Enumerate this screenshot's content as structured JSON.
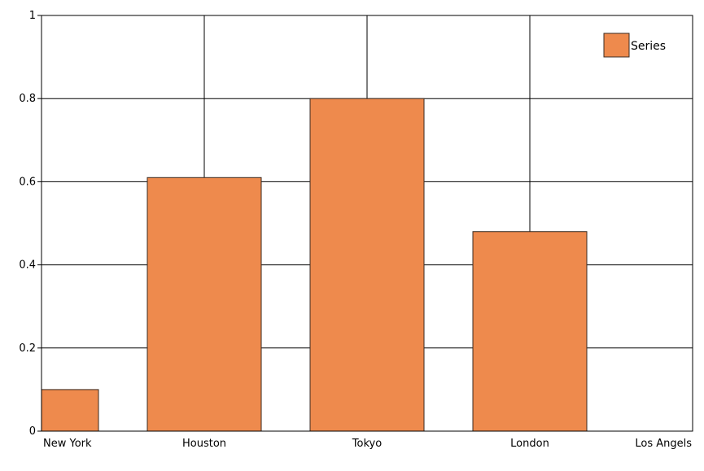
{
  "chart_data": {
    "type": "bar",
    "categories": [
      "New York",
      "Houston",
      "Tokyo",
      "London",
      "Los Angels"
    ],
    "series": [
      {
        "name": "Series",
        "values": [
          0.1,
          0.61,
          0.8,
          0.48,
          0
        ],
        "color": "#EE8A4D"
      }
    ],
    "y_ticks": [
      "0",
      "0.2",
      "0.4",
      "0.6",
      "0.8",
      "1"
    ],
    "ylim": [
      0,
      1
    ],
    "grid": true,
    "legend": {
      "position": "top-right",
      "entries": [
        "Series"
      ]
    },
    "colors": {
      "bar": "#EE8A4D",
      "bar_stroke": "#3a2a20",
      "grid": "#000000",
      "axis": "#000000"
    }
  }
}
